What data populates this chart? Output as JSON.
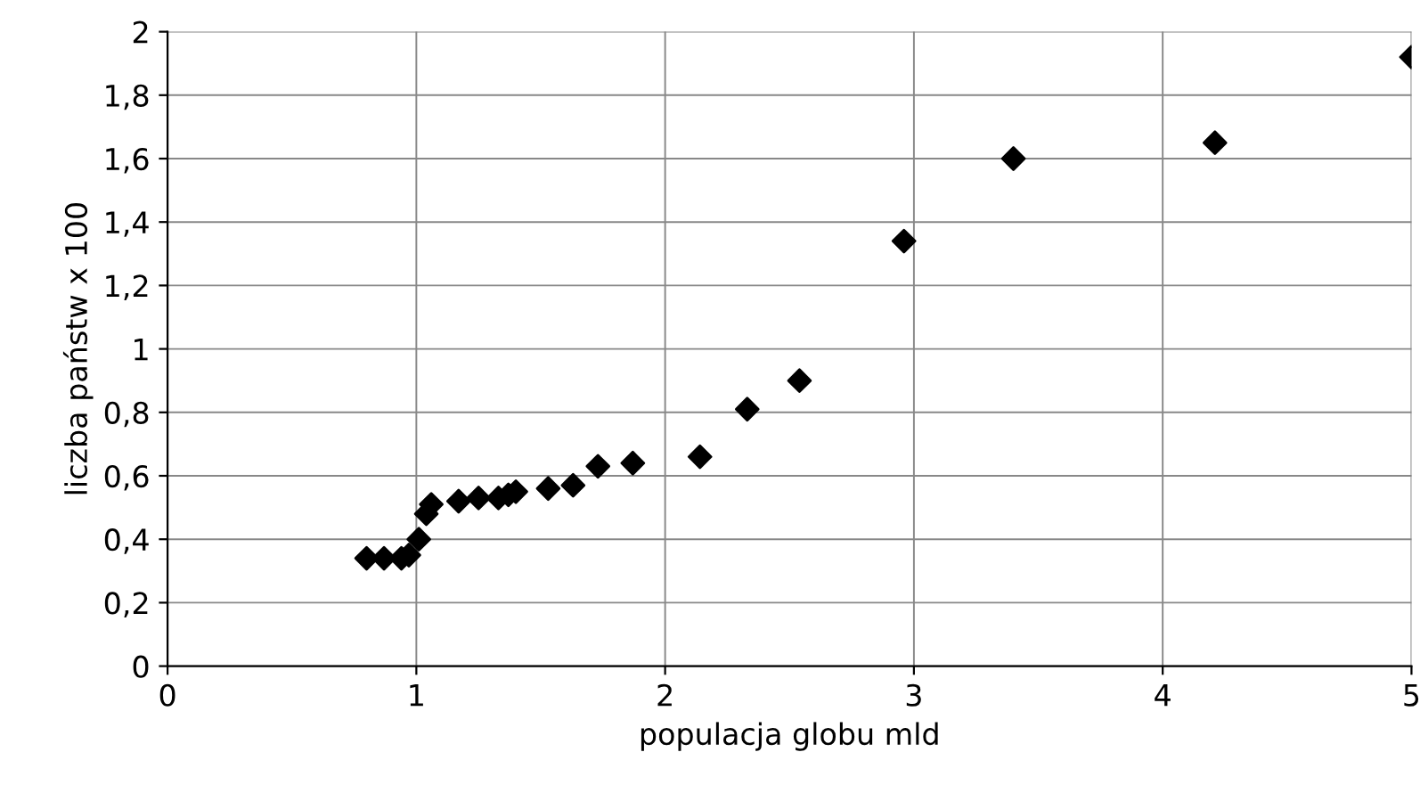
{
  "chart_data": {
    "type": "scatter",
    "xlabel": "populacja globu mld",
    "ylabel": "liczba państw x 100",
    "x": [
      0.8,
      0.87,
      0.94,
      0.97,
      1.01,
      1.04,
      1.06,
      1.17,
      1.25,
      1.33,
      1.37,
      1.4,
      1.53,
      1.63,
      1.73,
      1.87,
      2.14,
      2.33,
      2.54,
      2.96,
      3.4,
      4.21,
      5.0
    ],
    "series": [
      {
        "color": "#000000",
        "values": [
          0.34,
          0.34,
          0.34,
          0.35,
          0.4,
          0.48,
          0.51,
          0.52,
          0.53,
          0.53,
          0.54,
          0.55,
          0.56,
          0.57,
          0.63,
          0.64,
          0.66,
          0.81,
          0.9,
          1.34,
          1.6,
          1.65,
          1.92
        ]
      }
    ],
    "marker": "diamond",
    "grid": true,
    "legend": false,
    "xlim": [
      0,
      5
    ],
    "xticks": [
      0,
      1,
      2,
      3,
      4,
      5
    ],
    "ylim": [
      0,
      2
    ],
    "yticks": [
      0,
      {
        "value": 0.2,
        "label": "0,2"
      },
      {
        "value": 0.4,
        "label": "0,4"
      },
      {
        "value": 0.6,
        "label": "0,6"
      },
      {
        "value": 0.8,
        "label": "0,8"
      },
      1,
      {
        "value": 1.2,
        "label": "1,2"
      },
      {
        "value": 1.4,
        "label": "1,4"
      },
      {
        "value": 1.6,
        "label": "1,6"
      },
      {
        "value": 1.8,
        "label": "1,8"
      },
      2
    ]
  }
}
